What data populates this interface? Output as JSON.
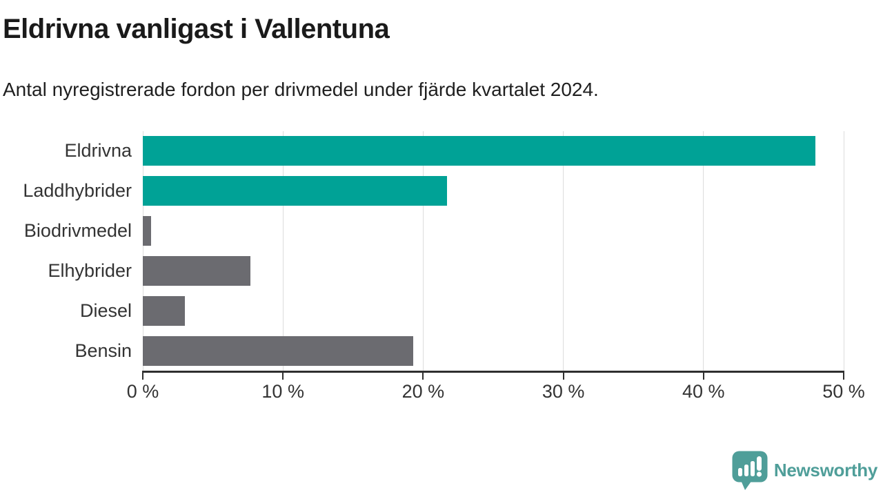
{
  "header": {
    "title": "Eldrivna vanligast i Vallentuna",
    "subtitle": "Antal nyregistrerade fordon per drivmedel under fjärde kvartalet 2024."
  },
  "chart_data": {
    "type": "bar",
    "orientation": "horizontal",
    "title": "Eldrivna vanligast i Vallentuna",
    "subtitle": "Antal nyregistrerade fordon per drivmedel under fjärde kvartalet 2024.",
    "categories": [
      "Eldrivna",
      "Laddhybrider",
      "Biodrivmedel",
      "Elhybrider",
      "Diesel",
      "Bensin"
    ],
    "values": [
      48,
      21.7,
      0.6,
      7.7,
      3,
      19.3
    ],
    "unit": "%",
    "xlim": [
      0,
      50
    ],
    "x_ticks": [
      0,
      10,
      20,
      30,
      40,
      50
    ],
    "x_tick_labels": [
      "0 %",
      "10 %",
      "20 %",
      "30 %",
      "40 %",
      "50 %"
    ],
    "grid": true,
    "legend": "none",
    "bar_colors": [
      "#00a296",
      "#00a296",
      "#6b6b70",
      "#6b6b70",
      "#6b6b70",
      "#6b6b70"
    ],
    "highlight_color": "#00a296",
    "default_color": "#6b6b70",
    "grid_color": "#dcdcdc",
    "axis_color": "#2f2f2f",
    "label_color": "#333333"
  },
  "branding": {
    "logo_text": "Newsworthy",
    "logo_color": "#4f9e99",
    "logo_icon": "speech-bubble-bar-chart"
  }
}
